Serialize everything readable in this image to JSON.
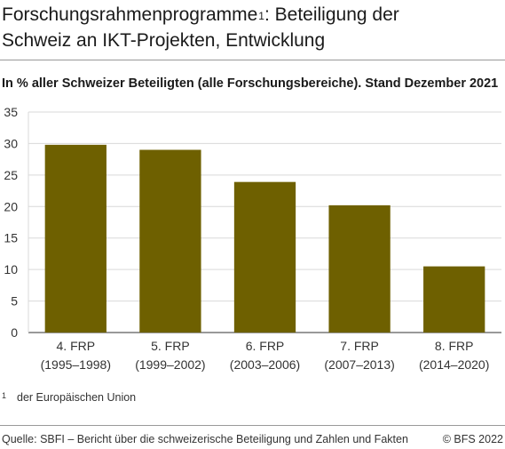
{
  "header": {
    "title_line1": "Forschungsrahmenprogramme",
    "title_sup": "1",
    "title_line1_rest": ": Beteiligung der",
    "title_line2": "Schweiz an IKT-Projekten, Entwicklung"
  },
  "chart_data": {
    "type": "bar",
    "title": "",
    "subtitle": "In % aller Schweizer Beteiligten (alle Forschungsbereiche). Stand Dezember 2021",
    "categories": [
      [
        "4. FRP",
        "(1995–1998)"
      ],
      [
        "5. FRP",
        "(1999–2002)"
      ],
      [
        "6. FRP",
        "(2003–2006)"
      ],
      [
        "7. FRP",
        "(2007–2013)"
      ],
      [
        "8. FRP",
        "(2014–2020)"
      ]
    ],
    "values": [
      29.8,
      29.0,
      23.9,
      20.2,
      10.5
    ],
    "ylim": [
      0,
      35
    ],
    "yticks": [
      0,
      5,
      10,
      15,
      20,
      25,
      30,
      35
    ],
    "xlabel": "",
    "ylabel": "",
    "grid": true,
    "bar_color": "#6e6000",
    "grid_color": "#d9d9d9"
  },
  "footnote": {
    "number": "1",
    "text": "der Europäischen Union"
  },
  "footer": {
    "source": "Quelle: SBFI – Bericht über die schweizerische Beteiligung und Zahlen und Fakten",
    "copyright": "© BFS 2022"
  }
}
